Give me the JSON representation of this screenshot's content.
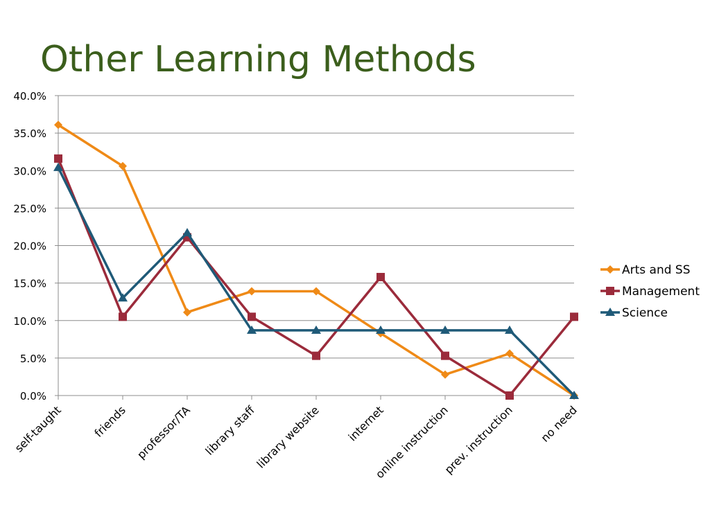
{
  "slide": {
    "title": "Other Learning Methods",
    "title_color": "#3b5e1c"
  },
  "chart_data": {
    "type": "line",
    "title": "Other Learning Methods",
    "xlabel": "",
    "ylabel": "",
    "categories": [
      "self-taught",
      "friends",
      "professor/TA",
      "library staff",
      "library website",
      "internet",
      "online instruction",
      "prev. instruction",
      "no need"
    ],
    "ylim": [
      0,
      40
    ],
    "ytick_step": 5,
    "ytick_format": "percent_one_decimal",
    "grid": true,
    "legend_position": "right",
    "series": [
      {
        "name": "Arts and SS",
        "marker": "diamond",
        "color": "#ef8a17",
        "values": [
          36.1,
          30.6,
          11.1,
          13.9,
          13.9,
          8.3,
          2.8,
          5.6,
          0.0
        ]
      },
      {
        "name": "Management",
        "marker": "square",
        "color": "#9b2b3b",
        "values": [
          31.6,
          10.5,
          21.1,
          10.5,
          5.3,
          15.8,
          5.3,
          0.0,
          10.5
        ]
      },
      {
        "name": "Science",
        "marker": "triangle",
        "color": "#1f5a78",
        "values": [
          30.4,
          13.0,
          21.7,
          8.7,
          8.7,
          8.7,
          8.7,
          8.7,
          0.0
        ]
      }
    ]
  }
}
